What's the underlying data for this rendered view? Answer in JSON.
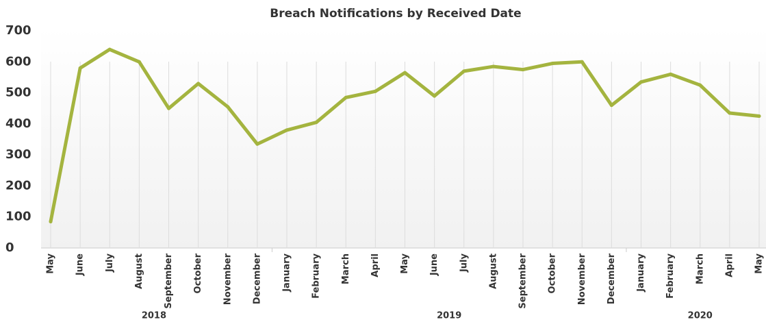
{
  "chart_data": {
    "type": "line",
    "title": "Breach Notifications by Received Date",
    "categories": [
      "May",
      "June",
      "July",
      "August",
      "September",
      "October",
      "November",
      "December",
      "January",
      "February",
      "March",
      "April",
      "May",
      "June",
      "July",
      "August",
      "September",
      "October",
      "November",
      "December",
      "January",
      "February",
      "March",
      "April",
      "May"
    ],
    "groups": [
      {
        "label": "2018",
        "count": 8
      },
      {
        "label": "2019",
        "count": 12
      },
      {
        "label": "2020",
        "count": 5
      }
    ],
    "series": [
      {
        "name": "Breach Notifications",
        "color": "#a4b43f",
        "values": [
          85,
          580,
          640,
          600,
          450,
          530,
          455,
          335,
          380,
          405,
          485,
          505,
          565,
          490,
          570,
          585,
          575,
          595,
          600,
          460,
          535,
          560,
          525,
          435,
          425
        ]
      }
    ],
    "ylim": [
      0,
      700
    ],
    "yticks": [
      0,
      100,
      200,
      300,
      400,
      500,
      600,
      700
    ],
    "grid": true
  }
}
